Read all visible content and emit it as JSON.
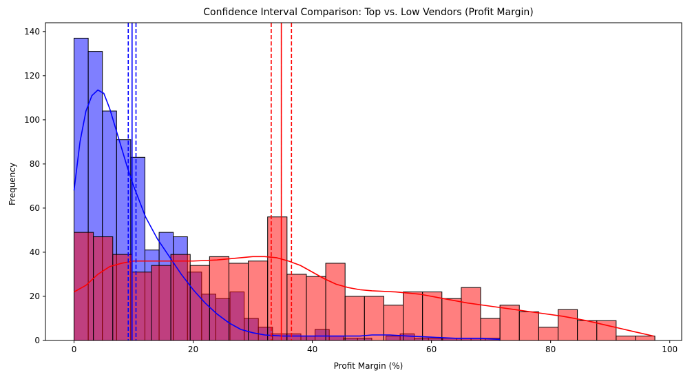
{
  "chart_data": {
    "type": "histogram",
    "title": "Confidence Interval Comparison: Top vs. Low Vendors (Profit Margin)",
    "xlabel": "Profit Margin (%)",
    "ylabel": "Frequency",
    "xlim": [
      -4.8,
      102
    ],
    "ylim": [
      0,
      144
    ],
    "xticks": [
      0,
      20,
      40,
      60,
      80,
      100
    ],
    "yticks": [
      0,
      20,
      40,
      60,
      80,
      100,
      120,
      140
    ],
    "grid": false,
    "legend": "none",
    "series": [
      {
        "color": "#0000ff",
        "fill_alpha": 0.5,
        "bin_start": 0,
        "bin_width": 2.38,
        "counts": [
          137,
          131,
          104,
          91,
          83,
          41,
          49,
          47,
          31,
          21,
          19,
          22,
          10,
          6,
          3,
          3,
          2,
          5,
          2,
          1,
          1,
          0,
          2,
          3,
          1,
          1,
          1,
          1,
          1,
          1
        ],
        "kde": [
          [
            0,
            68
          ],
          [
            1,
            90
          ],
          [
            2,
            104
          ],
          [
            3,
            111
          ],
          [
            4,
            113.5
          ],
          [
            5,
            112
          ],
          [
            6,
            105
          ],
          [
            7,
            96
          ],
          [
            8,
            87
          ],
          [
            9,
            78
          ],
          [
            10,
            70
          ],
          [
            12,
            56
          ],
          [
            14,
            46
          ],
          [
            16,
            38
          ],
          [
            18,
            30
          ],
          [
            20,
            23
          ],
          [
            22,
            17
          ],
          [
            24,
            12
          ],
          [
            26,
            8
          ],
          [
            28,
            5
          ],
          [
            30,
            3.5
          ],
          [
            32,
            2.5
          ],
          [
            35,
            2
          ],
          [
            40,
            2
          ],
          [
            45,
            2
          ],
          [
            48,
            2
          ],
          [
            50,
            2.5
          ],
          [
            53,
            2.5
          ],
          [
            56,
            2
          ],
          [
            60,
            1.5
          ],
          [
            64,
            1
          ],
          [
            68,
            1
          ],
          [
            71.5,
            0.5
          ]
        ],
        "mean": 9.74,
        "ci": [
          9.1,
          10.4
        ]
      },
      {
        "color": "#ff0000",
        "fill_alpha": 0.5,
        "bin_start": 0,
        "bin_width": 3.25,
        "counts": [
          49,
          47,
          39,
          31,
          34,
          39,
          34,
          38,
          35,
          36,
          56,
          30,
          29,
          35,
          20,
          20,
          16,
          22,
          22,
          19,
          24,
          10,
          16,
          13,
          6,
          14,
          9,
          9,
          2,
          2
        ],
        "kde": [
          [
            0,
            22
          ],
          [
            2,
            25
          ],
          [
            4,
            30
          ],
          [
            6,
            33.5
          ],
          [
            8,
            35
          ],
          [
            10,
            36
          ],
          [
            12,
            36
          ],
          [
            15,
            36
          ],
          [
            18,
            36
          ],
          [
            20,
            36
          ],
          [
            24,
            36.5
          ],
          [
            28,
            37.5
          ],
          [
            30,
            38
          ],
          [
            32,
            38
          ],
          [
            34,
            37.5
          ],
          [
            36,
            36
          ],
          [
            38,
            34
          ],
          [
            40,
            31
          ],
          [
            42,
            28
          ],
          [
            44,
            25.5
          ],
          [
            46,
            24
          ],
          [
            48,
            23
          ],
          [
            50,
            22.5
          ],
          [
            54,
            22
          ],
          [
            58,
            21
          ],
          [
            62,
            19
          ],
          [
            66,
            17
          ],
          [
            70,
            15.5
          ],
          [
            74,
            14
          ],
          [
            78,
            12.5
          ],
          [
            82,
            11
          ],
          [
            86,
            9
          ],
          [
            90,
            6.5
          ],
          [
            94,
            4
          ],
          [
            97.3,
            2
          ]
        ],
        "mean": 34.8,
        "ci": [
          33.1,
          36.5
        ]
      }
    ]
  }
}
